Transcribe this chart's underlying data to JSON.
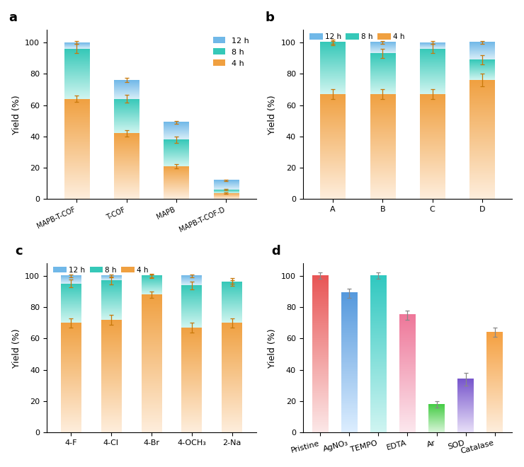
{
  "panel_a": {
    "categories": [
      "MAPB-T-COF",
      "T-COF",
      "MAPB",
      "MAPB-T-COF-D"
    ],
    "val_4h": [
      64,
      42,
      21,
      4
    ],
    "val_8h": [
      96,
      64,
      38,
      6
    ],
    "val_12h": [
      100,
      76,
      49,
      12
    ],
    "err_4h": [
      2,
      2,
      1.5,
      0.5
    ],
    "err_8h": [
      3,
      2.5,
      2,
      0.5
    ],
    "err_12h": [
      1,
      1.5,
      1,
      0.5
    ]
  },
  "panel_b": {
    "categories": [
      "A",
      "B",
      "C",
      "D"
    ],
    "val_4h": [
      67,
      67,
      67,
      76
    ],
    "val_8h": [
      100,
      93,
      96,
      89
    ],
    "val_12h": [
      100,
      100,
      100,
      100
    ],
    "err_4h": [
      3,
      3,
      3,
      4
    ],
    "err_8h": [
      2,
      3,
      3,
      3
    ],
    "err_12h": [
      1,
      1,
      1,
      1
    ]
  },
  "panel_c": {
    "categories": [
      "4-F",
      "4-Cl",
      "4-Br",
      "4-OCH₃",
      "2-Na"
    ],
    "val_4h": [
      70,
      72,
      88,
      67,
      70
    ],
    "val_8h": [
      95,
      97,
      100,
      94,
      96
    ],
    "val_12h": [
      100,
      100,
      100,
      100,
      96
    ],
    "err_4h": [
      3,
      3,
      2,
      3,
      3
    ],
    "err_8h": [
      2.5,
      2.5,
      1.5,
      2.5,
      2.5
    ],
    "err_12h": [
      1,
      1,
      1,
      1,
      1
    ]
  },
  "panel_d": {
    "categories": [
      "Pristine",
      "AgNO₃",
      "TEMPO",
      "EDTA",
      "Ar",
      "SOD",
      "Catalase"
    ],
    "values": [
      100,
      89,
      100,
      75,
      18,
      34,
      64
    ],
    "errors": [
      2,
      3,
      2,
      3,
      2,
      4,
      3
    ],
    "color_top": [
      "#e85555",
      "#5599dd",
      "#30c8c0",
      "#ee7799",
      "#44cc44",
      "#7755cc",
      "#f5a040"
    ],
    "color_bottom": [
      "#fce8e8",
      "#ddeeff",
      "#d0f5f2",
      "#fce8ee",
      "#d8f5d8",
      "#e8e0f8",
      "#feeedd"
    ]
  },
  "color_4h_top": "#f0a040",
  "color_4h_bot": "#feeedd",
  "color_8h_top": "#35c8b8",
  "color_8h_bot": "#d0f5f0",
  "color_12h_top": "#70b8e8",
  "color_12h_bot": "#d8eef8"
}
